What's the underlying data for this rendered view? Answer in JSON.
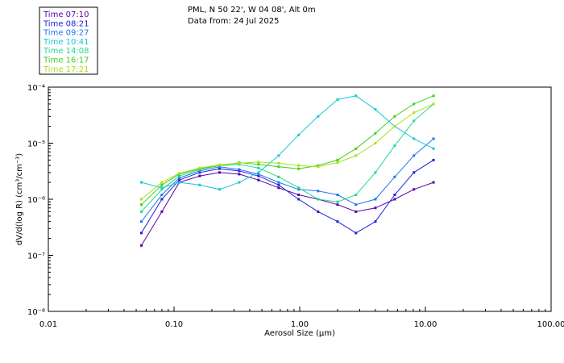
{
  "header": {
    "line1": "PML, N 50 22', W 04 08', Alt 0m",
    "line2": "Data from: 24 Jul 2025"
  },
  "chart_data": {
    "type": "line",
    "x_scale": "log",
    "y_scale": "log",
    "xlabel": "Aerosol Size (μm)",
    "ylabel": "dV/d(log R) (cm³/cm⁻³)",
    "xlim": [
      0.01,
      100
    ],
    "ylim": [
      1e-08,
      0.0001
    ],
    "x_ticks": [
      {
        "value": 0.01,
        "label": "0.01"
      },
      {
        "value": 0.1,
        "label": "0.10"
      },
      {
        "value": 1,
        "label": "1.00"
      },
      {
        "value": 10,
        "label": "10.00"
      },
      {
        "value": 100,
        "label": "100.00"
      }
    ],
    "y_ticks": [
      {
        "value": 1e-08,
        "label": "10⁻⁸"
      },
      {
        "value": 1e-07,
        "label": "10⁻⁷"
      },
      {
        "value": 1e-06,
        "label": "10⁻⁶"
      },
      {
        "value": 1e-05,
        "label": "10⁻⁵"
      },
      {
        "value": 0.0001,
        "label": "10⁻⁴"
      }
    ],
    "x": [
      0.055,
      0.08,
      0.11,
      0.16,
      0.23,
      0.33,
      0.47,
      0.68,
      0.98,
      1.4,
      2.0,
      2.8,
      4.0,
      5.7,
      8.1,
      11.6
    ],
    "series": [
      {
        "name": "Time 07:10",
        "color": "#5a00a8",
        "values": [
          1.5e-07,
          6e-07,
          2e-06,
          2.6e-06,
          3e-06,
          2.8e-06,
          2.2e-06,
          1.6e-06,
          1.2e-06,
          1e-06,
          8e-07,
          6e-07,
          7e-07,
          1e-06,
          1.5e-06,
          2e-06
        ]
      },
      {
        "name": "Time 08:21",
        "color": "#2020e0",
        "values": [
          2.5e-07,
          1e-06,
          2.2e-06,
          3e-06,
          3.5e-06,
          3.2e-06,
          2.6e-06,
          1.8e-06,
          1e-06,
          6e-07,
          4e-07,
          2.5e-07,
          4e-07,
          1.2e-06,
          3e-06,
          5e-06
        ]
      },
      {
        "name": "Time 09:27",
        "color": "#1e78f0",
        "values": [
          4e-07,
          1.2e-06,
          2.4e-06,
          3.2e-06,
          3.8e-06,
          3.4e-06,
          2.8e-06,
          2e-06,
          1.5e-06,
          1.4e-06,
          1.2e-06,
          8e-07,
          1e-06,
          2.5e-06,
          6e-06,
          1.2e-05
        ]
      },
      {
        "name": "Time 10:41",
        "color": "#18c8d8",
        "values": [
          2e-06,
          1.6e-06,
          2e-06,
          1.8e-06,
          1.5e-06,
          2e-06,
          3e-06,
          6e-06,
          1.4e-05,
          3e-05,
          6e-05,
          7e-05,
          4e-05,
          2e-05,
          1.2e-05,
          8e-06
        ]
      },
      {
        "name": "Time 14:08",
        "color": "#20d890",
        "values": [
          6e-07,
          1.5e-06,
          2.6e-06,
          3.4e-06,
          4e-06,
          4.2e-06,
          3.6e-06,
          2.5e-06,
          1.6e-06,
          1e-06,
          9e-07,
          1.2e-06,
          3e-06,
          9e-06,
          2.5e-05,
          5e-05
        ]
      },
      {
        "name": "Time 16:17",
        "color": "#40d020",
        "values": [
          8e-07,
          1.8e-06,
          2.8e-06,
          3.5e-06,
          4e-06,
          4.5e-06,
          4.2e-06,
          3.8e-06,
          3.5e-06,
          4e-06,
          5e-06,
          8e-06,
          1.5e-05,
          3e-05,
          5e-05,
          7e-05
        ]
      },
      {
        "name": "Time 17:21",
        "color": "#a8e020",
        "values": [
          1e-06,
          2e-06,
          2.9e-06,
          3.6e-06,
          4.1e-06,
          4.4e-06,
          4.6e-06,
          4.4e-06,
          4e-06,
          3.8e-06,
          4.5e-06,
          6e-06,
          1e-05,
          2e-05,
          3.5e-05,
          5e-05
        ]
      }
    ]
  }
}
